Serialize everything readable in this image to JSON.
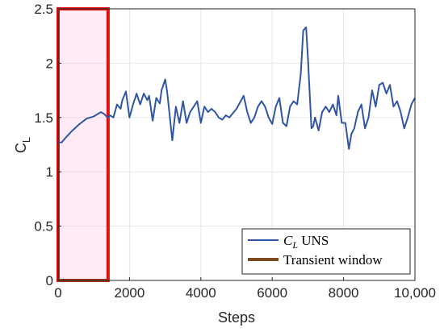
{
  "chart_data": {
    "type": "line",
    "xlabel": "Steps",
    "ylabel": "C",
    "ylabel_sub": "L",
    "xlim": [
      0,
      10000
    ],
    "ylim": [
      0,
      2.5
    ],
    "x_ticks": [
      0,
      2000,
      4000,
      6000,
      8000,
      10000
    ],
    "x_tick_labels": [
      "0",
      "2000",
      "4000",
      "6000",
      "8000",
      "10,000"
    ],
    "y_ticks": [
      0,
      0.5,
      1,
      1.5,
      2,
      2.5
    ],
    "y_tick_labels": [
      "0",
      "0.5",
      "1",
      "1.5",
      "2",
      "2.5"
    ],
    "grid": true,
    "legend_position": "bottom-right",
    "series": [
      {
        "name": "C",
        "name_sub": "L",
        "name_suffix": " UNS",
        "color": "#2f55a4",
        "x": [
          0,
          100,
          200,
          400,
          600,
          800,
          1000,
          1100,
          1200,
          1300,
          1380,
          1450,
          1550,
          1650,
          1750,
          1800,
          1900,
          2000,
          2100,
          2200,
          2300,
          2400,
          2500,
          2550,
          2650,
          2750,
          2850,
          2900,
          3000,
          3050,
          3100,
          3200,
          3300,
          3400,
          3500,
          3600,
          3700,
          3800,
          3900,
          4000,
          4100,
          4200,
          4300,
          4400,
          4500,
          4600,
          4700,
          4800,
          5000,
          5200,
          5300,
          5400,
          5500,
          5600,
          5700,
          5800,
          5900,
          6000,
          6100,
          6200,
          6300,
          6400,
          6500,
          6600,
          6700,
          6800,
          6870,
          6950,
          7000,
          7100,
          7150,
          7200,
          7300,
          7400,
          7500,
          7600,
          7700,
          7800,
          7850,
          7950,
          8050,
          8150,
          8220,
          8300,
          8400,
          8500,
          8600,
          8700,
          8800,
          8900,
          9000,
          9100,
          9200,
          9300,
          9400,
          9500,
          9600,
          9700,
          9800,
          9900,
          10000
        ],
        "y": [
          1.27,
          1.27,
          1.31,
          1.38,
          1.44,
          1.49,
          1.51,
          1.53,
          1.55,
          1.53,
          1.5,
          1.52,
          1.5,
          1.62,
          1.58,
          1.66,
          1.74,
          1.5,
          1.62,
          1.72,
          1.62,
          1.72,
          1.66,
          1.7,
          1.47,
          1.68,
          1.63,
          1.75,
          1.85,
          1.75,
          1.6,
          1.29,
          1.6,
          1.45,
          1.65,
          1.45,
          1.55,
          1.6,
          1.65,
          1.45,
          1.6,
          1.55,
          1.58,
          1.55,
          1.5,
          1.48,
          1.52,
          1.5,
          1.58,
          1.7,
          1.55,
          1.45,
          1.5,
          1.6,
          1.65,
          1.6,
          1.5,
          1.44,
          1.6,
          1.68,
          1.45,
          1.42,
          1.6,
          1.65,
          1.62,
          1.9,
          2.3,
          2.33,
          2.05,
          1.4,
          1.42,
          1.5,
          1.38,
          1.55,
          1.6,
          1.55,
          1.62,
          1.52,
          1.7,
          1.45,
          1.45,
          1.21,
          1.35,
          1.4,
          1.55,
          1.62,
          1.4,
          1.5,
          1.75,
          1.6,
          1.8,
          1.82,
          1.72,
          1.8,
          1.6,
          1.65,
          1.55,
          1.4,
          1.5,
          1.62,
          1.68
        ]
      }
    ],
    "highlight_window": {
      "name": "Transient window",
      "color": "#7a4a1e",
      "fill": "#ffc7e4",
      "border": "#e01010",
      "x_range": [
        0,
        1400
      ],
      "y_range": [
        0,
        2.5
      ]
    }
  }
}
